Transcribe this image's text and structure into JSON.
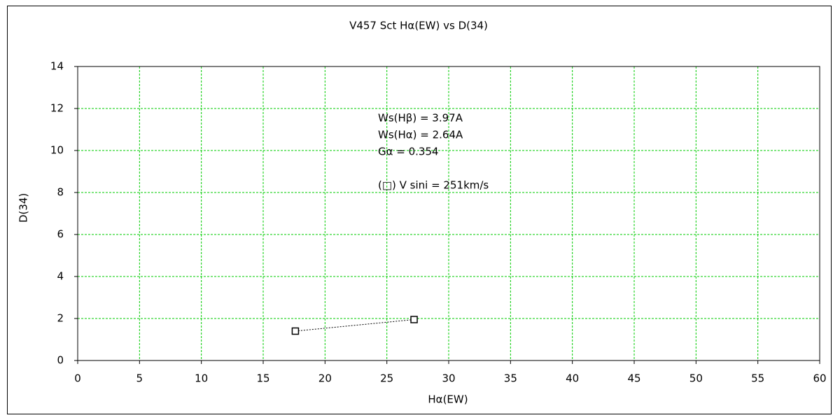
{
  "chart_data": {
    "type": "scatter",
    "title": "V457 Sct    Hα(EW) vs D(34)",
    "x_label": "Hα(EW)",
    "y_label": "D(34)",
    "annotations": [
      "Ws(Hβ) = 3.97A",
      "Ws(Hα) = 2.64A",
      "Gα = 0.354",
      "(□) V sini = 251km/s"
    ],
    "series": [
      {
        "color": "#000000",
        "x": [
          17.6,
          27.2
        ],
        "values": [
          1.4,
          1.95
        ]
      }
    ],
    "xlim": [
      0,
      60
    ],
    "xticks": [
      0,
      5,
      10,
      15,
      20,
      25,
      30,
      35,
      40,
      45,
      50,
      55,
      60
    ],
    "ylim": [
      0,
      14
    ],
    "yticks": [
      0,
      2,
      4,
      6,
      8,
      10,
      12,
      14
    ],
    "grid": true,
    "grid_color": "#00cc00",
    "line_style": "dotted",
    "marker": "square"
  }
}
